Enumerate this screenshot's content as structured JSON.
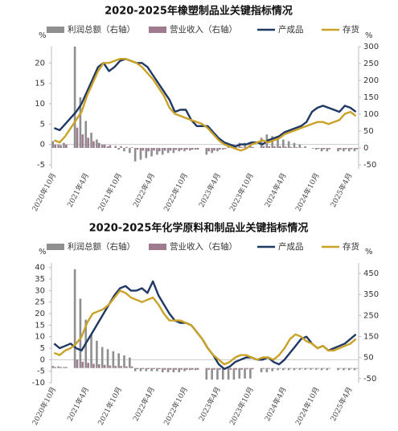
{
  "chart_data": [
    {
      "type": "combo",
      "title": "2020-2025年橡塑制品业关键指标情况",
      "left_unit": "%",
      "right_unit": "%",
      "categories": [
        "2020年10月",
        null,
        null,
        null,
        null,
        null,
        "2021年4月",
        null,
        null,
        null,
        null,
        null,
        "2021年10月",
        null,
        null,
        null,
        null,
        null,
        "2022年4月",
        null,
        null,
        null,
        null,
        null,
        "2022年10月",
        null,
        null,
        null,
        null,
        null,
        "2023年4月",
        null,
        null,
        null,
        null,
        null,
        "2023年10月",
        null,
        null,
        null,
        null,
        null,
        "2024年4月",
        null,
        null,
        null,
        null,
        null,
        "2024年10月",
        null,
        null,
        null,
        null,
        null,
        "2025年4月",
        null
      ],
      "ylim": [
        -6,
        24
      ],
      "yticks": [
        -5,
        0,
        5,
        10,
        15,
        20
      ],
      "y2lim": [
        -62,
        300
      ],
      "y2ticks": [
        -50,
        0,
        50,
        100,
        150,
        200,
        250,
        300
      ],
      "series": [
        {
          "name": "利润总额（右轴）",
          "kind": "bar",
          "axis": "y2",
          "color": "#8f8f8f",
          "values": [
            20,
            10,
            15,
            null,
            300,
            150,
            80,
            45,
            25,
            10,
            5,
            0,
            -5,
            -10,
            -15,
            -40,
            -35,
            -30,
            -25,
            -20,
            -20,
            -15,
            -15,
            -10,
            -10,
            -8,
            -5,
            null,
            -20,
            -15,
            -10,
            -5,
            5,
            10,
            15,
            15,
            15,
            null,
            30,
            40,
            35,
            30,
            25,
            20,
            15,
            10,
            5,
            0,
            -5,
            -10,
            -10,
            null,
            -10,
            -10,
            -10,
            -10
          ]
        },
        {
          "name": "营业收入（右轴）",
          "kind": "bar",
          "axis": "y2",
          "color": "#a07a8e",
          "values": [
            10,
            8,
            10,
            null,
            60,
            40,
            30,
            20,
            15,
            10,
            8,
            6,
            5,
            3,
            2,
            -5,
            -8,
            -10,
            -8,
            -10,
            -8,
            -8,
            -6,
            -6,
            -5,
            -5,
            -5,
            null,
            -10,
            -8,
            -5,
            -3,
            0,
            2,
            3,
            3,
            3,
            null,
            5,
            5,
            5,
            5,
            4,
            3,
            2,
            1,
            0,
            -2,
            -3,
            -4,
            -4,
            null,
            -5,
            -4,
            -4,
            -4
          ]
        },
        {
          "name": "产成品",
          "kind": "line",
          "color": "#1f3864",
          "values": [
            4,
            3.5,
            5,
            6.5,
            8,
            10,
            13,
            16,
            19,
            20,
            18,
            19,
            20.5,
            21,
            20.5,
            20,
            20,
            19,
            17,
            15,
            13,
            11,
            8,
            8.5,
            8.5,
            6,
            4.5,
            4.5,
            4.5,
            3,
            1.5,
            0.5,
            0,
            -0.5,
            0,
            0,
            0.5,
            0.5,
            0,
            1,
            1.5,
            2,
            3,
            3.5,
            4,
            4.5,
            5.5,
            8,
            9,
            9.5,
            9,
            8.5,
            8,
            9.5,
            9,
            8
          ]
        },
        {
          "name": "存货",
          "kind": "line",
          "color": "#c9a227",
          "values": [
            1,
            0.5,
            2,
            4,
            6,
            8,
            12,
            15,
            18,
            20,
            20,
            20.5,
            21,
            21,
            20.5,
            20,
            19,
            17.5,
            16,
            14,
            12,
            9,
            7.5,
            7,
            6.5,
            6,
            5.5,
            5,
            4,
            2.5,
            1,
            0,
            -0.5,
            -1,
            -1.5,
            -1,
            0,
            0.5,
            1,
            0.5,
            1,
            1.5,
            2.5,
            3,
            3.5,
            4,
            4.5,
            5,
            5.5,
            5.5,
            5,
            5.5,
            6,
            7.5,
            8,
            7
          ]
        }
      ]
    },
    {
      "type": "combo",
      "title": "2020-2025年化学原料和制品业关键指标情况",
      "left_unit": "%",
      "right_unit": "%",
      "categories": [
        "2020年10月",
        null,
        null,
        null,
        null,
        null,
        "2021年4月",
        null,
        null,
        null,
        null,
        null,
        "2021年10月",
        null,
        null,
        null,
        null,
        null,
        "2022年4月",
        null,
        null,
        null,
        null,
        null,
        "2022年10月",
        null,
        null,
        null,
        null,
        null,
        "2023年4月",
        null,
        null,
        null,
        null,
        null,
        "2023年10月",
        null,
        null,
        null,
        null,
        null,
        "2024年4月",
        null,
        null,
        null,
        null,
        null,
        "2024年10月",
        null,
        null,
        null,
        null,
        null,
        "2025年4月",
        null
      ],
      "ylim": [
        -10,
        42
      ],
      "yticks": [
        -10,
        -5,
        0,
        5,
        10,
        15,
        20,
        25,
        30,
        35,
        40
      ],
      "y2lim": [
        -70,
        500
      ],
      "y2ticks": [
        -50,
        50,
        150,
        250,
        350,
        450
      ],
      "series": [
        {
          "name": "利润总额（右轴）",
          "kind": "bar",
          "axis": "y2",
          "color": "#8f8f8f",
          "values": [
            10,
            8,
            5,
            null,
            470,
            330,
            230,
            160,
            130,
            100,
            90,
            80,
            70,
            60,
            50,
            -15,
            -15,
            -15,
            -15,
            -15,
            -20,
            -20,
            -20,
            -20,
            -15,
            -10,
            -10,
            null,
            -55,
            -55,
            -55,
            -55,
            -55,
            -55,
            -50,
            -50,
            -50,
            null,
            -20,
            -20,
            -15,
            -10,
            -10,
            -10,
            -10,
            -8,
            -8,
            -8,
            -8,
            -10,
            -10,
            null,
            -10,
            -10,
            -10,
            -10
          ]
        },
        {
          "name": "营业收入（右轴）",
          "kind": "bar",
          "axis": "y2",
          "color": "#a07a8e",
          "values": [
            5,
            5,
            5,
            null,
            40,
            30,
            25,
            20,
            18,
            15,
            12,
            10,
            10,
            8,
            8,
            -5,
            -5,
            -5,
            -5,
            -5,
            -8,
            -8,
            -8,
            -8,
            -8,
            -8,
            -8,
            null,
            -8,
            -8,
            -8,
            -8,
            -8,
            -8,
            -8,
            -6,
            -6,
            null,
            -4,
            -4,
            -3,
            -3,
            -3,
            -3,
            -3,
            -3,
            -3,
            -3,
            -3,
            -3,
            -3,
            null,
            -3,
            -3,
            -3,
            -3
          ]
        },
        {
          "name": "产成品",
          "kind": "line",
          "color": "#1f3864",
          "values": [
            7,
            5,
            6,
            7,
            5,
            4,
            8,
            12,
            16,
            20,
            24,
            28,
            31,
            32,
            30,
            30,
            31,
            29,
            34,
            28,
            24,
            20,
            17,
            16,
            16,
            15,
            12,
            9,
            5,
            2,
            -2,
            -4,
            -3,
            -1,
            0,
            1,
            1,
            0,
            0,
            1,
            -1,
            -2,
            0,
            3,
            6,
            9,
            10,
            7,
            5,
            6,
            4,
            5,
            6,
            7,
            9,
            11
          ]
        },
        {
          "name": "存货",
          "kind": "line",
          "color": "#c9a227",
          "values": [
            3,
            2,
            4,
            5,
            7,
            10,
            16,
            20,
            21,
            22,
            24,
            27,
            30,
            29,
            27,
            26,
            25,
            26,
            27,
            24,
            20,
            17,
            17,
            17,
            16,
            15,
            12,
            9,
            5,
            2,
            0,
            -2,
            -1,
            1,
            2,
            2,
            1,
            0,
            1,
            1,
            0,
            2,
            5,
            9,
            11,
            10,
            8,
            7,
            5,
            6,
            4,
            4,
            5,
            6,
            7,
            9
          ]
        }
      ]
    }
  ]
}
